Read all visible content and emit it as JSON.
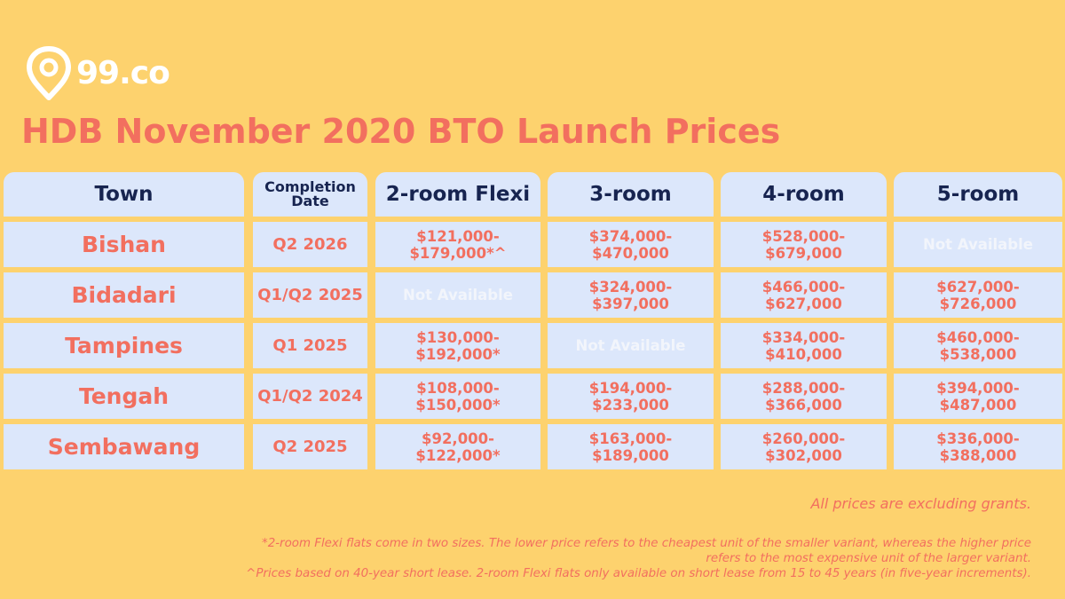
{
  "brand": {
    "name": "99.co",
    "logo_icon": "map-pin-icon"
  },
  "colors": {
    "background": "#FDD26E",
    "accent": "#F26F5F",
    "header_text": "#172450",
    "cell_bg": "#DCE7FB",
    "not_available_text": "#F2F5FB"
  },
  "title": "HDB November 2020 BTO Launch Prices",
  "chart_data": {
    "type": "table",
    "title": "HDB November 2020 BTO Launch Prices",
    "columns": [
      "Town",
      "Completion Date",
      "2-room Flexi",
      "3-room",
      "4-room",
      "5-room"
    ],
    "rows": [
      {
        "town": "Bishan",
        "completion": "Q2 2026",
        "cells": [
          {
            "l1": "$121,000-",
            "l2": "$179,000*^"
          },
          {
            "l1": "$374,000-",
            "l2": "$470,000"
          },
          {
            "l1": "$528,000-",
            "l2": "$679,000"
          },
          {
            "na": "Not Available"
          }
        ]
      },
      {
        "town": "Bidadari",
        "completion": "Q1/Q2 2025",
        "cells": [
          {
            "na": "Not Available"
          },
          {
            "l1": "$324,000-",
            "l2": "$397,000"
          },
          {
            "l1": "$466,000-",
            "l2": "$627,000"
          },
          {
            "l1": "$627,000-",
            "l2": "$726,000"
          }
        ]
      },
      {
        "town": "Tampines",
        "completion": "Q1 2025",
        "cells": [
          {
            "l1": "$130,000-",
            "l2": "$192,000*"
          },
          {
            "na": "Not Available"
          },
          {
            "l1": "$334,000-",
            "l2": "$410,000"
          },
          {
            "l1": "$460,000-",
            "l2": "$538,000"
          }
        ]
      },
      {
        "town": "Tengah",
        "completion": "Q1/Q2 2024",
        "cells": [
          {
            "l1": "$108,000-",
            "l2": "$150,000*"
          },
          {
            "l1": "$194,000-",
            "l2": "$233,000"
          },
          {
            "l1": "$288,000-",
            "l2": "$366,000"
          },
          {
            "l1": "$394,000-",
            "l2": "$487,000"
          }
        ]
      },
      {
        "town": "Sembawang",
        "completion": "Q2 2025",
        "cells": [
          {
            "l1": "$92,000-",
            "l2": "$122,000*"
          },
          {
            "l1": "$163,000-",
            "l2": "$189,000"
          },
          {
            "l1": "$260,000-",
            "l2": "$302,000"
          },
          {
            "l1": "$336,000-",
            "l2": "$388,000"
          }
        ]
      }
    ]
  },
  "notes": {
    "excluding_grants": "All prices are excluding grants.",
    "flexi_note_1": "*2-room Flexi flats come in two sizes. The lower price refers to the cheapest unit of the smaller variant, whereas the higher price",
    "flexi_note_2": "refers to the most expensive unit of the larger variant.",
    "lease_note": "^Prices based on 40-year short lease. 2-room Flexi flats only available on short lease from 15 to 45 years (in five-year increments)."
  }
}
